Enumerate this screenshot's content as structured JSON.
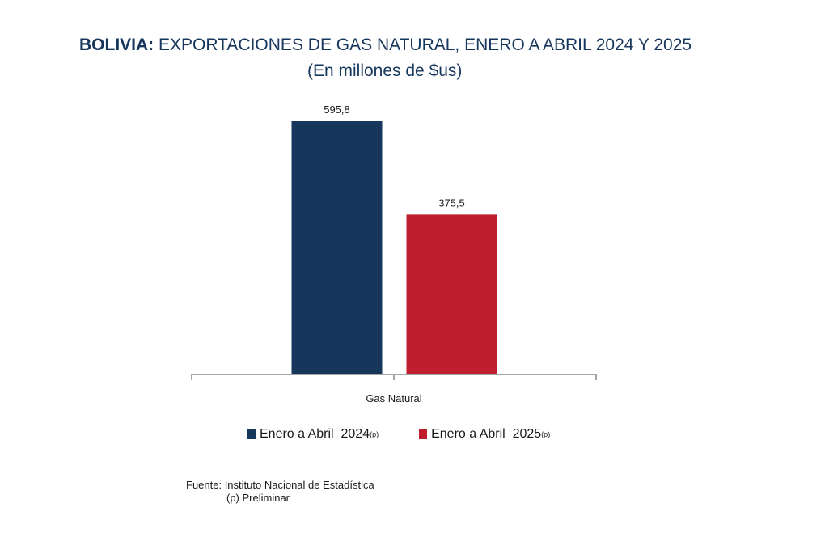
{
  "header": {
    "country": "BOLIVIA:",
    "title": "EXPORTACIONES DE GAS NATURAL, ENERO A ABRIL 2024 Y 2025",
    "subtitle": "(En millones de $us)"
  },
  "chart_data": {
    "type": "bar",
    "categories": [
      "Gas Natural"
    ],
    "series": [
      {
        "name": "Enero a Abril 2024",
        "superscript": "(p)",
        "values": [
          595.8
        ],
        "label": "595,8",
        "color": "#16365c"
      },
      {
        "name": "Enero a Abril 2025",
        "superscript": "(p)",
        "values": [
          375.5
        ],
        "label": "375,5",
        "color": "#be1e2d"
      }
    ],
    "ylim": [
      0,
      600
    ],
    "grid": false,
    "legend_position": "bottom"
  },
  "legend": {
    "item1": "Enero a Abril  2024",
    "item1_sup": "(p)",
    "item2": "Enero a Abril  2025",
    "item2_sup": "(p)"
  },
  "footer": {
    "source": "Fuente: Instituto Nacional de Estadística",
    "note": "(p) Preliminar"
  }
}
